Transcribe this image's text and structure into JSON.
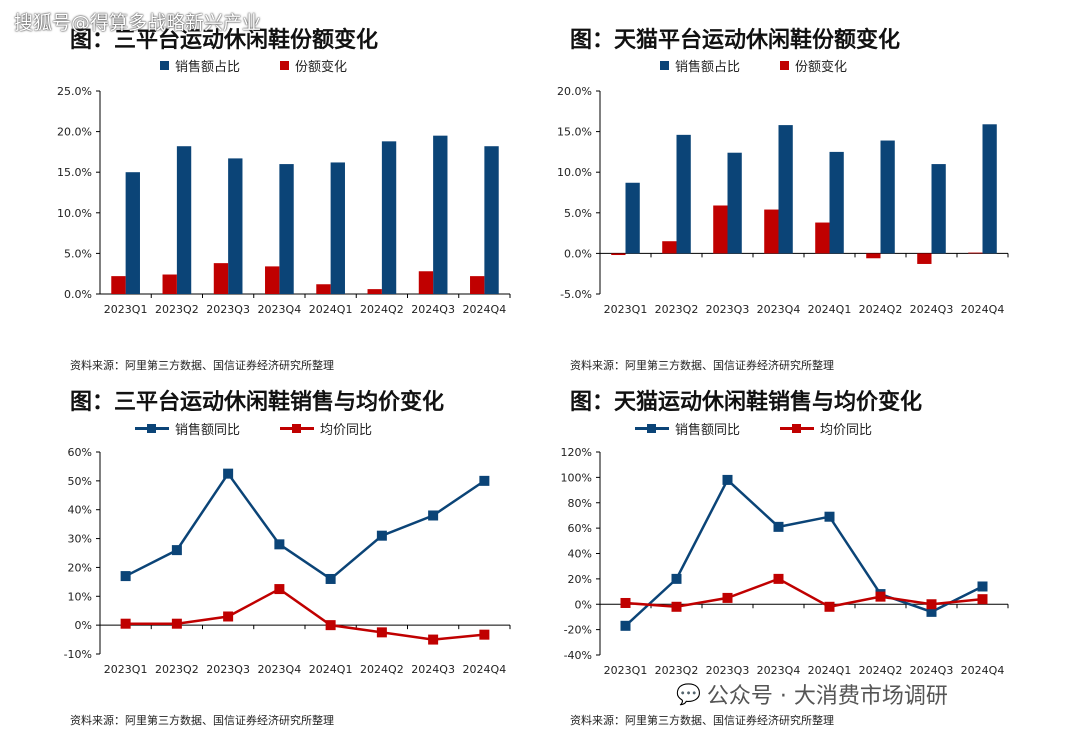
{
  "watermark_top": "搜狐号@得算多战略新兴产业",
  "watermark_bottom": "公众号 · 大消费市场调研",
  "colors": {
    "blue": "#0b4477",
    "red": "#c00000"
  },
  "chart_data": [
    {
      "type": "bar",
      "title": "图：三平台运动休闲鞋份额变化",
      "categories": [
        "2023Q1",
        "2023Q2",
        "2023Q3",
        "2023Q4",
        "2024Q1",
        "2024Q2",
        "2024Q3",
        "2024Q4"
      ],
      "series": [
        {
          "name": "销售额占比",
          "values": [
            15.0,
            18.2,
            16.7,
            16.0,
            16.2,
            18.8,
            19.5,
            18.2
          ]
        },
        {
          "name": "份额变化",
          "values": [
            2.2,
            2.4,
            3.8,
            3.4,
            1.2,
            0.6,
            2.8,
            2.2
          ]
        }
      ],
      "ylim": [
        0,
        25
      ],
      "yticks": [
        "0.0%",
        "5.0%",
        "10.0%",
        "15.0%",
        "20.0%",
        "25.0%"
      ],
      "source": "资料来源：阿里第三方数据、国信证券经济研究所整理"
    },
    {
      "type": "bar",
      "title": "图：天猫平台运动休闲鞋份额变化",
      "categories": [
        "2023Q1",
        "2023Q2",
        "2023Q3",
        "2023Q4",
        "2024Q1",
        "2024Q2",
        "2024Q3",
        "2024Q4"
      ],
      "series": [
        {
          "name": "销售额占比",
          "values": [
            8.7,
            14.6,
            12.4,
            15.8,
            12.5,
            13.9,
            11.0,
            15.9
          ]
        },
        {
          "name": "份额变化",
          "values": [
            -0.2,
            1.5,
            5.9,
            5.4,
            3.8,
            -0.6,
            -1.3,
            0.1
          ]
        }
      ],
      "ylim": [
        -5,
        20
      ],
      "yticks": [
        "-5.0%",
        "0.0%",
        "5.0%",
        "10.0%",
        "15.0%",
        "20.0%"
      ],
      "source": "资料来源：阿里第三方数据、国信证券经济研究所整理"
    },
    {
      "type": "line",
      "title": "图：三平台运动休闲鞋销售与均价变化",
      "categories": [
        "2023Q1",
        "2023Q2",
        "2023Q3",
        "2023Q4",
        "2024Q1",
        "2024Q2",
        "2024Q3",
        "2024Q4"
      ],
      "series": [
        {
          "name": "销售额同比",
          "values": [
            17,
            26,
            52.5,
            28,
            16,
            31,
            38,
            50
          ]
        },
        {
          "name": "均价同比",
          "values": [
            0.5,
            0.5,
            3,
            12.5,
            0,
            -2.5,
            -5,
            -3.3
          ]
        }
      ],
      "ylim": [
        -10,
        60
      ],
      "yticks": [
        "-10%",
        "0%",
        "10%",
        "20%",
        "30%",
        "40%",
        "50%",
        "60%"
      ],
      "source": "资料来源：阿里第三方数据、国信证券经济研究所整理"
    },
    {
      "type": "line",
      "title": "图：天猫运动休闲鞋销售与均价变化",
      "categories": [
        "2023Q1",
        "2023Q2",
        "2023Q3",
        "2023Q4",
        "2024Q1",
        "2024Q2",
        "2024Q3",
        "2024Q4"
      ],
      "series": [
        {
          "name": "销售额同比",
          "values": [
            -17,
            20,
            98,
            61,
            69,
            8,
            -6,
            14
          ]
        },
        {
          "name": "均价同比",
          "values": [
            1,
            -2,
            5,
            20,
            -2,
            6,
            0,
            4
          ]
        }
      ],
      "ylim": [
        -40,
        120
      ],
      "yticks": [
        "-40%",
        "-20%",
        "0%",
        "20%",
        "40%",
        "60%",
        "80%",
        "100%",
        "120%"
      ],
      "source": "资料来源：阿里第三方数据、国信证券经济研究所整理"
    }
  ]
}
